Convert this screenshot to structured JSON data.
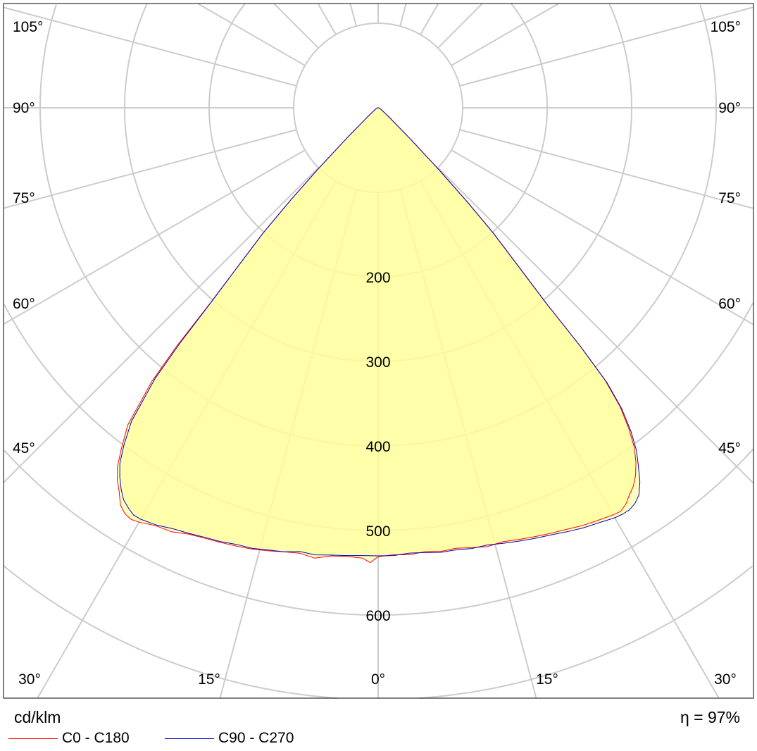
{
  "chart_data": {
    "type": "polar",
    "unit": "cd/klm",
    "efficiency_label": "η = 97%",
    "radial_ticks": [
      200,
      300,
      400,
      500,
      600
    ],
    "radial_tick_labels": [
      "200",
      "300",
      "400",
      "500",
      "600"
    ],
    "grid_circles": [
      100,
      200,
      300,
      400,
      500,
      600,
      700
    ],
    "angle_step_deg": 15,
    "angle_labels_side": [
      "105°",
      "90°",
      "75°",
      "60°",
      "45°"
    ],
    "angle_labels_bottom": [
      "30°",
      "15°",
      "0°",
      "15°",
      "30°"
    ],
    "fill_color": "#ffff99",
    "series": [
      {
        "name": "C0 - C180",
        "color": "#ff0000",
        "points": [
          [
            -90,
            1
          ],
          [
            -60,
            4
          ],
          [
            -50,
            15
          ],
          [
            -46,
            50
          ],
          [
            -44.5,
            100
          ],
          [
            -43.5,
            150
          ],
          [
            -42.6,
            200
          ],
          [
            -41.5,
            250
          ],
          [
            -40.7,
            304
          ],
          [
            -40.2,
            370
          ],
          [
            -39.6,
            420
          ],
          [
            -38.3,
            478
          ],
          [
            -37,
            505
          ],
          [
            -36,
            525
          ],
          [
            -35,
            538
          ],
          [
            -34,
            548
          ],
          [
            -33,
            560
          ],
          [
            -32,
            566
          ],
          [
            -31,
            568
          ],
          [
            -30,
            566
          ],
          [
            -28,
            560
          ],
          [
            -26,
            558
          ],
          [
            -24,
            552
          ],
          [
            -22,
            549
          ],
          [
            -20,
            547
          ],
          [
            -18,
            545
          ],
          [
            -16,
            543
          ],
          [
            -14,
            540
          ],
          [
            -12,
            537
          ],
          [
            -10,
            535
          ],
          [
            -8,
            538
          ],
          [
            -6,
            533
          ],
          [
            -4,
            532
          ],
          [
            -2,
            533
          ],
          [
            -1,
            538
          ],
          [
            0,
            531
          ],
          [
            2,
            529
          ],
          [
            4,
            530
          ],
          [
            6,
            528
          ],
          [
            8,
            530
          ],
          [
            10,
            529
          ],
          [
            12,
            532
          ],
          [
            14,
            535
          ],
          [
            16,
            534
          ],
          [
            18,
            537
          ],
          [
            20,
            540
          ],
          [
            22,
            543
          ],
          [
            24,
            546
          ],
          [
            26,
            550
          ],
          [
            28,
            553
          ],
          [
            30,
            556
          ],
          [
            31,
            557
          ],
          [
            32,
            553
          ],
          [
            33,
            546
          ],
          [
            34,
            540
          ],
          [
            35,
            531
          ],
          [
            36,
            519
          ],
          [
            37,
            504
          ],
          [
            38,
            482
          ],
          [
            39,
            455
          ],
          [
            39.8,
            420
          ],
          [
            40.3,
            370
          ],
          [
            40.7,
            304
          ],
          [
            41.5,
            250
          ],
          [
            42.6,
            200
          ],
          [
            43.5,
            150
          ],
          [
            44.5,
            100
          ],
          [
            46,
            50
          ],
          [
            50,
            15
          ],
          [
            60,
            4
          ],
          [
            90,
            1
          ]
        ]
      },
      {
        "name": "C90 - C270",
        "color": "#0000cc",
        "points": [
          [
            -90,
            1
          ],
          [
            -60,
            4
          ],
          [
            -50,
            15
          ],
          [
            -46,
            50
          ],
          [
            -44.5,
            100
          ],
          [
            -43.5,
            150
          ],
          [
            -42.6,
            200
          ],
          [
            -41.5,
            250
          ],
          [
            -40.7,
            300
          ],
          [
            -40.1,
            365
          ],
          [
            -39.5,
            415
          ],
          [
            -38.2,
            472
          ],
          [
            -37,
            500
          ],
          [
            -36,
            520
          ],
          [
            -35,
            533
          ],
          [
            -34,
            544
          ],
          [
            -33,
            553
          ],
          [
            -32,
            558
          ],
          [
            -31,
            562
          ],
          [
            -30,
            562
          ],
          [
            -28,
            559
          ],
          [
            -26,
            554
          ],
          [
            -24,
            551
          ],
          [
            -22,
            548
          ],
          [
            -20,
            546
          ],
          [
            -18,
            543
          ],
          [
            -16,
            542
          ],
          [
            -14,
            539
          ],
          [
            -12,
            537
          ],
          [
            -10,
            533
          ],
          [
            -8,
            534
          ],
          [
            -6,
            532
          ],
          [
            -4,
            531
          ],
          [
            -2,
            530
          ],
          [
            0,
            530
          ],
          [
            2,
            530
          ],
          [
            4,
            528
          ],
          [
            6,
            529
          ],
          [
            8,
            531
          ],
          [
            10,
            531
          ],
          [
            12,
            533
          ],
          [
            14,
            533
          ],
          [
            16,
            536
          ],
          [
            18,
            539
          ],
          [
            20,
            542
          ],
          [
            22,
            545
          ],
          [
            24,
            549
          ],
          [
            26,
            553
          ],
          [
            28,
            556
          ],
          [
            30,
            560
          ],
          [
            31,
            561
          ],
          [
            32,
            561
          ],
          [
            33,
            558
          ],
          [
            34,
            552
          ],
          [
            35,
            540
          ],
          [
            36,
            524
          ],
          [
            37,
            508
          ],
          [
            38,
            486
          ],
          [
            39,
            458
          ],
          [
            39.8,
            423
          ],
          [
            40.3,
            372
          ],
          [
            40.7,
            306
          ],
          [
            41.5,
            252
          ],
          [
            42.6,
            202
          ],
          [
            43.5,
            152
          ],
          [
            44.5,
            102
          ],
          [
            46,
            52
          ],
          [
            50,
            16
          ],
          [
            60,
            4
          ],
          [
            90,
            1
          ]
        ]
      }
    ]
  },
  "legend": {
    "unit": "cd/klm",
    "efficiency": "η = 97%",
    "series": [
      "C0 - C180",
      "C90 - C270"
    ]
  }
}
